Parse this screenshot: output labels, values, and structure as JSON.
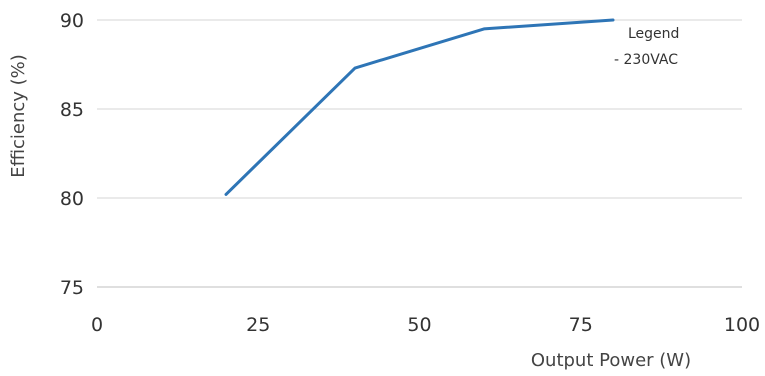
{
  "chart_data": {
    "type": "line",
    "xlabel": "Output Power (W)",
    "ylabel": "Efficiency (%)",
    "xlim": [
      0,
      100
    ],
    "ylim": [
      75,
      90
    ],
    "xticks": [
      0,
      25,
      50,
      75,
      100
    ],
    "yticks": [
      75,
      80,
      85,
      90
    ],
    "grid": "horizontal",
    "legend": {
      "title": "Legend",
      "placement": "top-right",
      "entries": [
        "- 230VAC"
      ]
    },
    "series": [
      {
        "name": "230VAC",
        "color": "#2e75b6",
        "x": [
          20,
          40,
          60,
          80
        ],
        "y": [
          80.2,
          87.3,
          89.5,
          90.0
        ]
      }
    ]
  }
}
